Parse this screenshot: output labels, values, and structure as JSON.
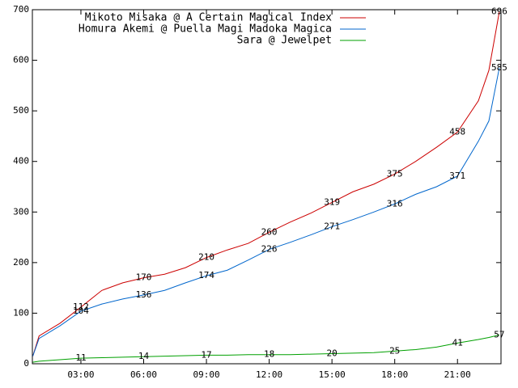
{
  "chart_data": {
    "type": "line",
    "x": [
      0.7,
      1,
      2,
      3,
      4,
      5,
      6,
      7,
      8,
      9,
      10,
      11,
      12,
      13,
      14,
      15,
      16,
      17,
      18,
      19,
      20,
      21,
      22,
      22.5,
      23
    ],
    "series": [
      {
        "name": "Mikoto Misaka @ A Certain Magical Index",
        "color": "#cc0000",
        "values": [
          15,
          55,
          80,
          112,
          145,
          160,
          170,
          177,
          190,
          210,
          225,
          238,
          260,
          280,
          298,
          319,
          340,
          355,
          375,
          400,
          428,
          458,
          520,
          580,
          696
        ]
      },
      {
        "name": "Homura Akemi @ Puella Magi Madoka Magica",
        "color": "#0066cc",
        "values": [
          15,
          50,
          75,
          104,
          118,
          128,
          136,
          145,
          160,
          174,
          185,
          205,
          226,
          240,
          255,
          271,
          285,
          300,
          316,
          335,
          350,
          371,
          440,
          480,
          585
        ]
      },
      {
        "name": "Sara @ Jewelpet",
        "color": "#00a000",
        "values": [
          3,
          5,
          8,
          11,
          12,
          13,
          14,
          15,
          16,
          17,
          17,
          18,
          18,
          18,
          19,
          20,
          21,
          22,
          25,
          28,
          33,
          41,
          48,
          52,
          57
        ]
      }
    ],
    "xlim": [
      0.68,
      23.08
    ],
    "xticks": [
      {
        "value": 3,
        "label": "03:00"
      },
      {
        "value": 6,
        "label": "06:00"
      },
      {
        "value": 9,
        "label": "09:00"
      },
      {
        "value": 12,
        "label": "12:00"
      },
      {
        "value": 15,
        "label": "15:00"
      },
      {
        "value": 18,
        "label": "18:00"
      },
      {
        "value": 21,
        "label": "21:00"
      }
    ],
    "ylim": [
      0,
      700
    ],
    "yticks": [
      0,
      100,
      200,
      300,
      400,
      500,
      600,
      700
    ],
    "legend": "top-left"
  }
}
